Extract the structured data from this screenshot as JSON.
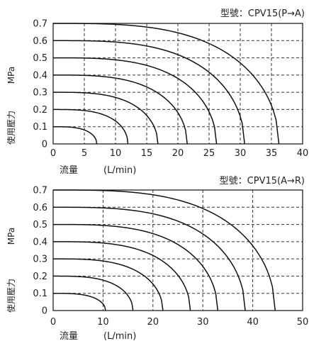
{
  "chart_data": [
    {
      "type": "line",
      "title": "型號：CPV15(P→A)",
      "xlabel": "流量",
      "xunit": "(L/min)",
      "ylabel": "使用壓力",
      "yunit": "MPa",
      "xlim": [
        0,
        40
      ],
      "ylim": [
        0,
        0.7
      ],
      "x_ticks": [
        "0",
        "5",
        "10",
        "15",
        "20",
        "25",
        "30",
        "35",
        "40"
      ],
      "y_ticks": [
        "0",
        "0.1",
        "0.2",
        "0.3",
        "0.4",
        "0.5",
        "0.6",
        "0.7"
      ],
      "grid": "dashed",
      "series": [
        {
          "pressure": 0.1,
          "max_flow": 7.0
        },
        {
          "pressure": 0.2,
          "max_flow": 12.0
        },
        {
          "pressure": 0.3,
          "max_flow": 16.8
        },
        {
          "pressure": 0.4,
          "max_flow": 21.5
        },
        {
          "pressure": 0.5,
          "max_flow": 26.2
        },
        {
          "pressure": 0.6,
          "max_flow": 30.7
        },
        {
          "pressure": 0.7,
          "max_flow": 36.2
        }
      ]
    },
    {
      "type": "line",
      "title": "型號：CPV15(A→R)",
      "xlabel": "流量",
      "xunit": "(L/min)",
      "ylabel": "使用壓力",
      "yunit": "MPa",
      "xlim": [
        0,
        50
      ],
      "ylim": [
        0,
        0.7
      ],
      "x_ticks": [
        "0",
        "10",
        "20",
        "30",
        "40",
        "50"
      ],
      "y_ticks": [
        "0",
        "0.1",
        "0.2",
        "0.3",
        "0.4",
        "0.5",
        "0.6",
        "0.7"
      ],
      "grid": "dashed",
      "series": [
        {
          "pressure": 0.1,
          "max_flow": 10.5
        },
        {
          "pressure": 0.2,
          "max_flow": 16.0
        },
        {
          "pressure": 0.3,
          "max_flow": 22.0
        },
        {
          "pressure": 0.4,
          "max_flow": 27.5
        },
        {
          "pressure": 0.5,
          "max_flow": 33.0
        },
        {
          "pressure": 0.6,
          "max_flow": 38.5
        },
        {
          "pressure": 0.7,
          "max_flow": 44.5
        }
      ]
    }
  ]
}
